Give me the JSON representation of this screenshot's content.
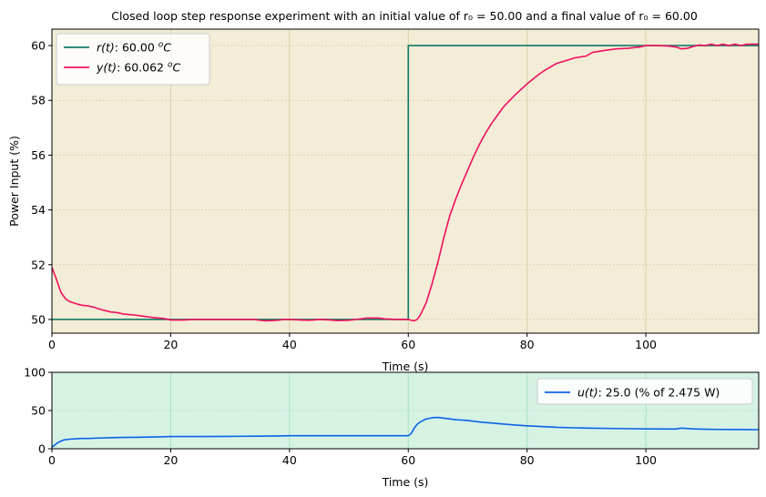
{
  "chart_data": [
    {
      "type": "line",
      "title": "Closed loop step response experiment with an initial value of  r₀ = 50.00 and a  final value of r₀ = 60.00",
      "xlabel": "Time (s)",
      "ylabel": "Power Input (%)",
      "xlim": [
        0,
        119
      ],
      "ylim": [
        49.5,
        60.6
      ],
      "xticks": [
        0,
        20,
        40,
        60,
        80,
        100
      ],
      "yticks": [
        50,
        52,
        54,
        56,
        58,
        60
      ],
      "grid": true,
      "background": "#f3ecd6",
      "legend": "top-left",
      "series": [
        {
          "name": "r(t):  60.00 °C",
          "label_math": "r(t)",
          "label_value": ":  60.00 ",
          "label_unit": "C",
          "color": "#117a65",
          "step": true,
          "x": [
            0,
            60,
            60,
            119
          ],
          "y": [
            50,
            50,
            60,
            60
          ]
        },
        {
          "name": "y(t):  60.062 °C",
          "label_math": "y(t)",
          "label_value": ":  60.062 ",
          "label_unit": "C",
          "color": "#f0105f",
          "step": false,
          "x": [
            0,
            0.7,
            1.5,
            2.3,
            3,
            4,
            5,
            6,
            7,
            8,
            9,
            10,
            11,
            12,
            13,
            14,
            15,
            16,
            17,
            18,
            19,
            20,
            22,
            24,
            26,
            28,
            30,
            32,
            34,
            35,
            36,
            38,
            39,
            40,
            42,
            43,
            44,
            45,
            47,
            48,
            50,
            52,
            53,
            55,
            56,
            58,
            59,
            60,
            60.5,
            61,
            61.5,
            62,
            63,
            64,
            65,
            66,
            67,
            68,
            69,
            70,
            71,
            72,
            73,
            74,
            75,
            76,
            77,
            78,
            79,
            80,
            82,
            83,
            85,
            87,
            88,
            90,
            91,
            93,
            95,
            97,
            99,
            100,
            102,
            104,
            105,
            106,
            107,
            108,
            109,
            110,
            111,
            112,
            113,
            114,
            115,
            116,
            117,
            118,
            119
          ],
          "y": [
            51.9,
            51.5,
            51.0,
            50.75,
            50.65,
            50.58,
            50.52,
            50.5,
            50.45,
            50.38,
            50.32,
            50.27,
            50.25,
            50.2,
            50.18,
            50.16,
            50.13,
            50.1,
            50.07,
            50.05,
            50.03,
            49.98,
            49.98,
            50.0,
            50.0,
            50.0,
            50.0,
            50.0,
            50.0,
            49.97,
            49.95,
            49.97,
            50.0,
            50.0,
            49.98,
            49.97,
            49.98,
            50.0,
            49.98,
            49.96,
            49.97,
            50.02,
            50.05,
            50.05,
            50.02,
            50.0,
            50.0,
            50.0,
            49.97,
            49.95,
            50.0,
            50.15,
            50.6,
            51.3,
            52.1,
            53.0,
            53.8,
            54.4,
            54.95,
            55.45,
            55.95,
            56.4,
            56.8,
            57.15,
            57.45,
            57.75,
            57.98,
            58.2,
            58.4,
            58.6,
            58.95,
            59.1,
            59.35,
            59.48,
            59.55,
            59.62,
            59.75,
            59.82,
            59.88,
            59.9,
            59.95,
            60.0,
            60.0,
            59.98,
            59.95,
            59.88,
            59.9,
            59.97,
            60.02,
            60.0,
            60.05,
            60.0,
            60.05,
            60.0,
            60.05,
            60.0,
            60.05,
            60.05,
            60.05
          ]
        }
      ]
    },
    {
      "type": "line",
      "xlabel": "Time (s)",
      "ylabel": "",
      "xlim": [
        0,
        119
      ],
      "ylim": [
        0,
        100
      ],
      "xticks": [
        0,
        20,
        40,
        60,
        80,
        100
      ],
      "yticks": [
        0,
        50,
        100
      ],
      "grid": true,
      "background": "#d5f2e3",
      "legend": "top-right",
      "series": [
        {
          "name": "u(t):  25.0 (% of 2.475 W)",
          "label_math": "u(t)",
          "label_value": ":  25.0 (% of 2.475 W)",
          "color": "#0b62e8",
          "x": [
            0,
            0.5,
            1,
            1.5,
            2,
            3,
            4,
            5,
            6,
            8,
            10,
            12,
            14,
            16,
            18,
            20,
            22,
            25,
            30,
            35,
            38,
            40,
            42,
            45,
            48,
            50,
            52,
            55,
            58,
            60,
            60.5,
            61,
            61.5,
            62,
            62.5,
            63,
            64,
            65,
            66,
            68,
            70,
            72,
            75,
            78,
            80,
            85,
            90,
            95,
            100,
            105,
            106,
            108,
            110,
            112,
            115,
            117,
            119
          ],
          "y": [
            2,
            5,
            8,
            10,
            11.5,
            12.5,
            13,
            13.5,
            13.5,
            14,
            14.5,
            14.8,
            15,
            15.2,
            15.5,
            16,
            16,
            16,
            16.2,
            16.4,
            16.8,
            17,
            17,
            17,
            17,
            17,
            17,
            17,
            17,
            17,
            20,
            27,
            32,
            35,
            37,
            39,
            40.5,
            41,
            40,
            38,
            37,
            35,
            33,
            31,
            30,
            28,
            27,
            26.5,
            26,
            25.8,
            27,
            26,
            25.5,
            25.3,
            25.2,
            25.1,
            25.0
          ]
        }
      ]
    }
  ]
}
